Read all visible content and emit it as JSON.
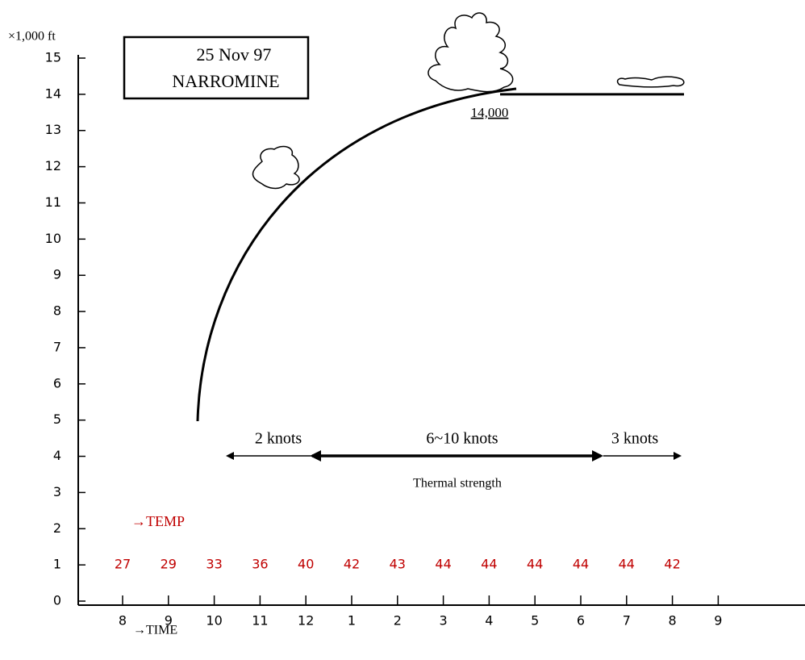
{
  "chart_data": {
    "type": "profile",
    "title": "25 Nov 97",
    "subtitle": "NARROMINE",
    "y_label": "×1,000 ft",
    "ylim": [
      0,
      15
    ],
    "yticks": [
      0,
      1,
      2,
      3,
      4,
      5,
      6,
      7,
      8,
      9,
      10,
      11,
      12,
      13,
      14,
      15
    ],
    "x_label": "→TIME",
    "categories": [
      "8",
      "9",
      "10",
      "11",
      "12",
      "1",
      "2",
      "3",
      "4",
      "5",
      "6",
      "7",
      "8",
      "9"
    ],
    "series": [
      {
        "name": "→TEMP",
        "color": "#c00000",
        "values": [
          27,
          29,
          33,
          36,
          40,
          42,
          43,
          44,
          44,
          44,
          44,
          44,
          42,
          null
        ]
      }
    ],
    "ceiling": {
      "value": 14,
      "label": "14,000"
    },
    "thermal": {
      "weak_start": "2 knots",
      "strong": "6~10 knots",
      "weak_end": "3 knots",
      "caption": "Thermal strength"
    }
  }
}
